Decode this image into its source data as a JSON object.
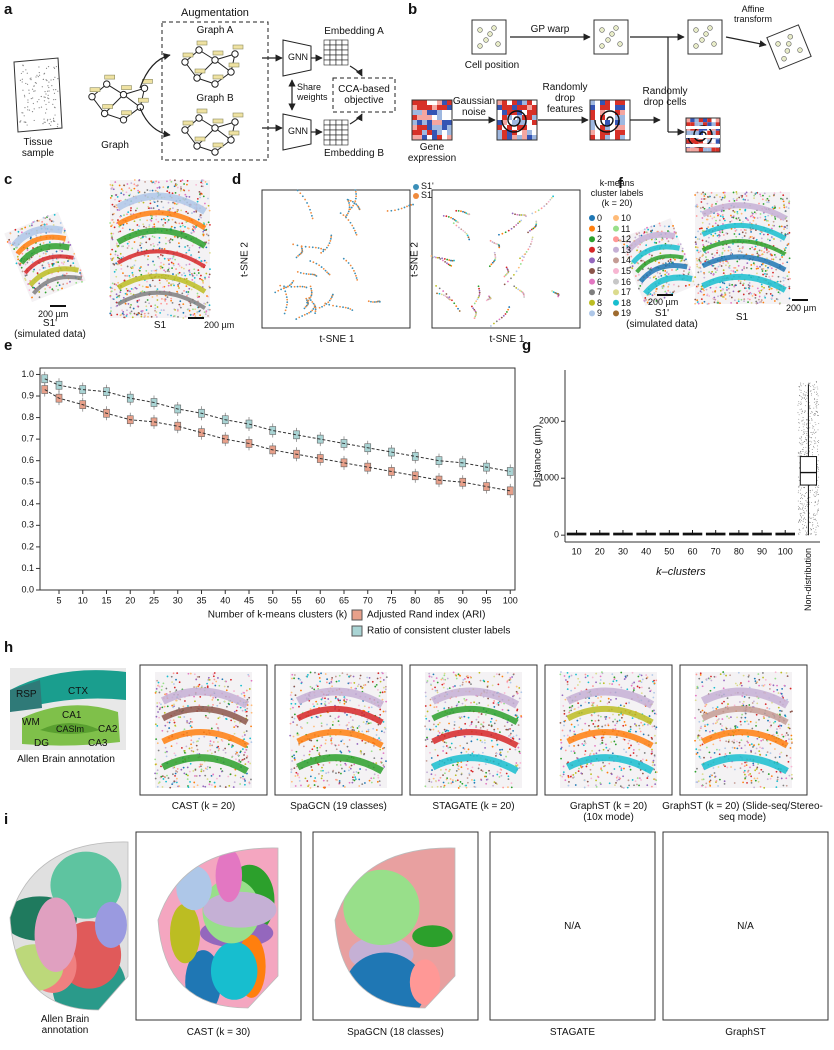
{
  "panel_labels": [
    "a",
    "b",
    "c",
    "d",
    "e",
    "f",
    "g",
    "h",
    "i"
  ],
  "a": {
    "tissue": "Tissue sample",
    "graph": "Graph",
    "augmentation": "Augmentation",
    "graph_a": "Graph A",
    "graph_b": "Graph B",
    "gnn": "GNN",
    "embedding_a": "Embedding A",
    "embedding_b": "Embedding B",
    "share": "Share weights",
    "objective": "CCA-based objective"
  },
  "b": {
    "cell_position": "Cell position",
    "gp_warp": "GP warp",
    "affine": "Affine transform",
    "gene_expression": "Gene expression",
    "noise": "Gaussian noise",
    "drop_features": "Randomly drop features",
    "drop_cells": "Randomly drop cells"
  },
  "c": {
    "scale": "200 µm",
    "sim": "S1'",
    "sim_note": "(simulated data)",
    "real": "S1"
  },
  "d": {
    "legend": [
      {
        "name": "S1'",
        "color": "#3b8fb8"
      },
      {
        "name": "S1",
        "color": "#f08a3c"
      }
    ],
    "xlabel": "t-SNE 1",
    "ylabel": "t-SNE 2",
    "cluster_title": "k-means cluster labels (k = 20)",
    "clusters": [
      {
        "label": "0",
        "color": "#1f77b4"
      },
      {
        "label": "1",
        "color": "#ff7f0e"
      },
      {
        "label": "2",
        "color": "#2ca02c"
      },
      {
        "label": "3",
        "color": "#d62728"
      },
      {
        "label": "4",
        "color": "#9467bd"
      },
      {
        "label": "5",
        "color": "#8c564b"
      },
      {
        "label": "6",
        "color": "#e377c2"
      },
      {
        "label": "7",
        "color": "#7f7f7f"
      },
      {
        "label": "8",
        "color": "#bcbd22"
      },
      {
        "label": "9",
        "color": "#aec7e8"
      },
      {
        "label": "10",
        "color": "#ffbb78"
      },
      {
        "label": "11",
        "color": "#98df8a"
      },
      {
        "label": "12",
        "color": "#ff9896"
      },
      {
        "label": "13",
        "color": "#c5b0d5"
      },
      {
        "label": "14",
        "color": "#c49c94"
      },
      {
        "label": "15",
        "color": "#f7b6d2"
      },
      {
        "label": "16",
        "color": "#c7c7c7"
      },
      {
        "label": "17",
        "color": "#dbdb8d"
      },
      {
        "label": "18",
        "color": "#17becf"
      },
      {
        "label": "19",
        "color": "#9e6b2f"
      }
    ]
  },
  "f": {
    "scale": "200 µm",
    "sim": "S1'",
    "sim_note": "(simulated data)",
    "real": "S1"
  },
  "chart_data": [
    {
      "type": "box",
      "xlabel": "Number of k-means clusters (k)",
      "x": [
        2,
        5,
        10,
        15,
        20,
        25,
        30,
        35,
        40,
        45,
        50,
        55,
        60,
        65,
        70,
        75,
        80,
        85,
        90,
        95,
        100
      ],
      "series": [
        {
          "name": "Adjusted Rand index (ARI)",
          "color": "#e8a08a",
          "values": [
            0.93,
            0.89,
            0.86,
            0.82,
            0.79,
            0.78,
            0.76,
            0.73,
            0.7,
            0.68,
            0.65,
            0.63,
            0.61,
            0.59,
            0.57,
            0.55,
            0.53,
            0.51,
            0.5,
            0.48,
            0.46
          ]
        },
        {
          "name": "Ratio of consistent cluster labels",
          "color": "#a9d4d4",
          "values": [
            0.98,
            0.95,
            0.93,
            0.92,
            0.89,
            0.87,
            0.84,
            0.82,
            0.79,
            0.77,
            0.74,
            0.72,
            0.7,
            0.68,
            0.66,
            0.64,
            0.62,
            0.6,
            0.59,
            0.57,
            0.55
          ]
        }
      ],
      "xlim": [
        1,
        101
      ],
      "ylim": [
        0,
        1.03
      ],
      "xticks": [
        5,
        10,
        15,
        20,
        25,
        30,
        35,
        40,
        45,
        50,
        55,
        60,
        65,
        70,
        75,
        80,
        85,
        90,
        95,
        100
      ],
      "yticks": [
        {
          "value": 0,
          "label": "0.0"
        },
        0.1,
        0.2,
        0.3,
        0.4,
        0.5,
        0.6,
        0.7,
        0.8,
        0.9,
        {
          "value": 1,
          "label": "1.0"
        }
      ]
    },
    {
      "type": "box",
      "ylabel": "Distance (µm)",
      "xlabel": "k–clusters",
      "categories": [
        "10",
        "20",
        "30",
        "40",
        "50",
        "60",
        "70",
        "80",
        "90",
        "100",
        "Non-distribution"
      ],
      "median": [
        15,
        15,
        15,
        15,
        15,
        15,
        15,
        15,
        15,
        15,
        1100
      ],
      "q1": [
        5,
        5,
        5,
        5,
        5,
        5,
        5,
        5,
        5,
        5,
        880
      ],
      "q3": [
        35,
        35,
        35,
        35,
        35,
        35,
        35,
        35,
        35,
        35,
        1380
      ],
      "whisker_low": [
        0,
        0,
        0,
        0,
        0,
        0,
        0,
        0,
        0,
        0,
        0
      ],
      "whisker_high": [
        90,
        90,
        90,
        90,
        90,
        90,
        90,
        90,
        90,
        90,
        2650
      ],
      "color": "#ffffff",
      "ylim": [
        -120,
        2900
      ],
      "yticks": [
        0,
        1000,
        2000
      ]
    }
  ],
  "h": {
    "regions": [
      "RSP",
      "CTX",
      "WM",
      "CA1",
      "CASlm",
      "CA2",
      "DG",
      "CA3"
    ],
    "annotation": "Allen Brain annotation",
    "captions": [
      "CAST (k = 20)",
      "SpaGCN (19 classes)",
      "STAGATE (k = 20)",
      "GraphST (k = 20) (10x mode)",
      "GraphST (k = 20) (Slide-seq/Stereo-seq mode)"
    ]
  },
  "i": {
    "annotation": "Allen Brain annotation",
    "captions": [
      "CAST (k = 30)",
      "SpaGCN (18 classes)",
      "STAGATE",
      "GraphST"
    ],
    "na": "N/A"
  }
}
